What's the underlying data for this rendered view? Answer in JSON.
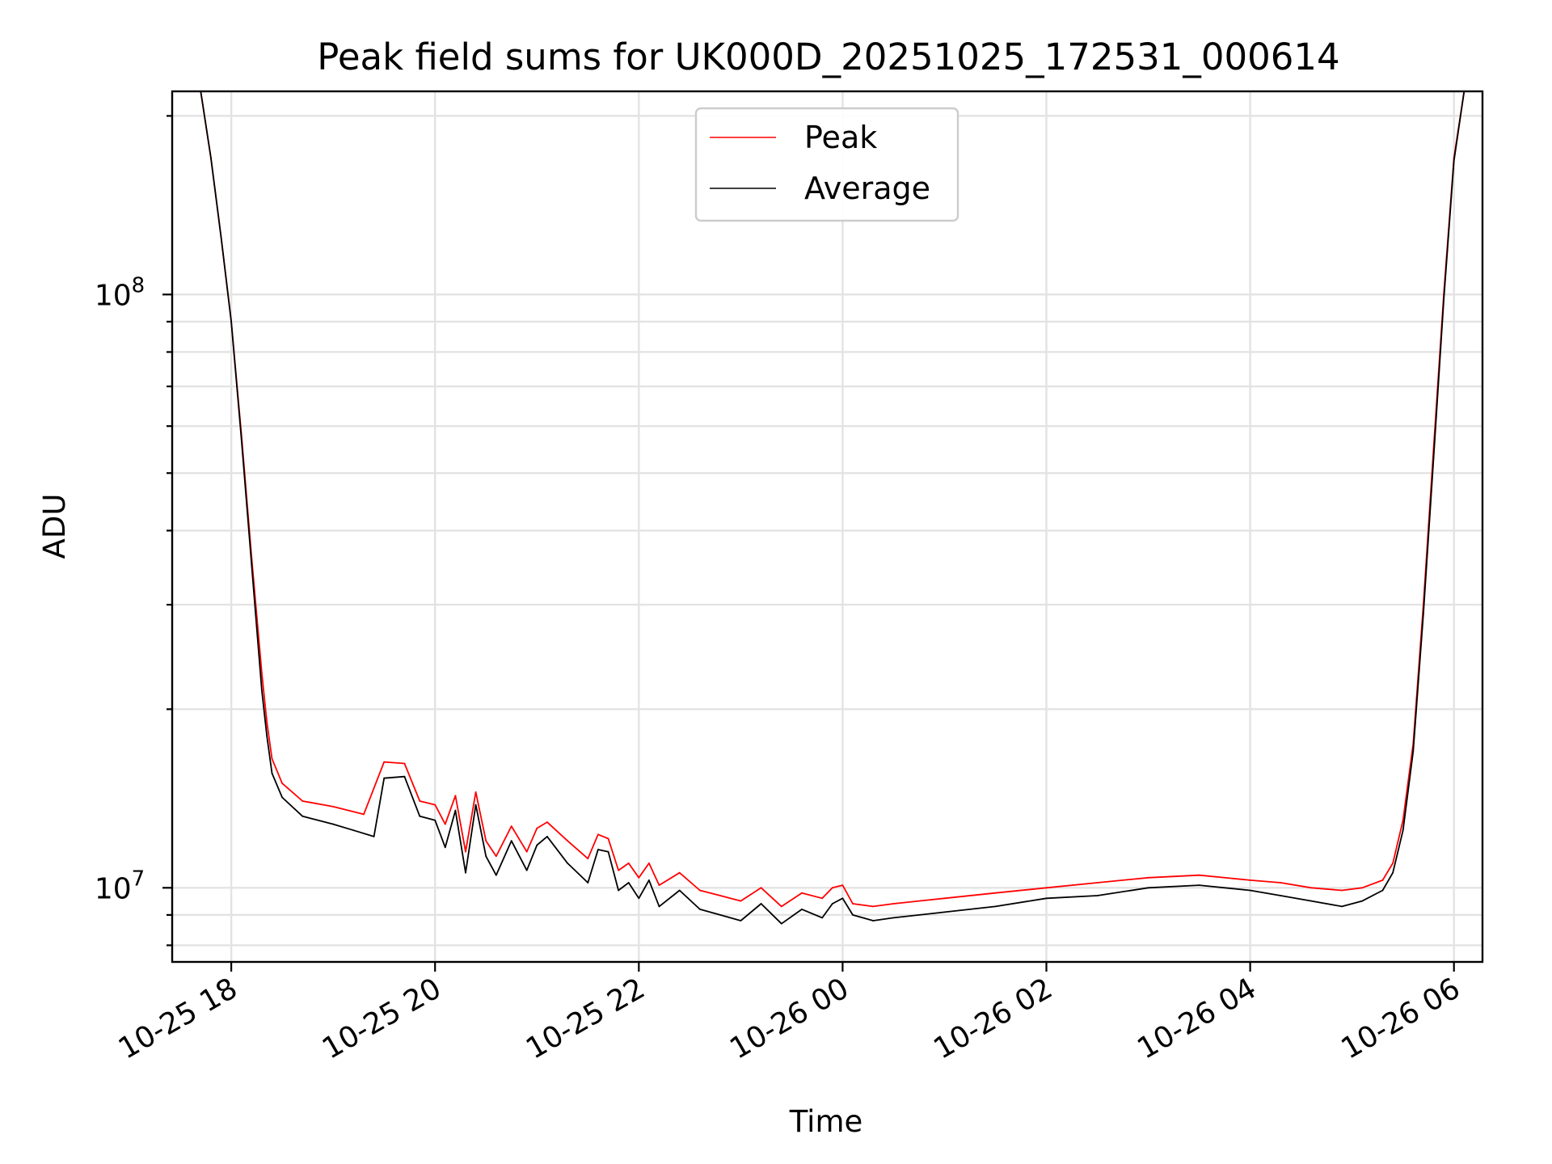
{
  "chart_data": {
    "type": "line",
    "title": "Peak field sums for UK000D_20251025_172531_000614",
    "xlabel": "Time",
    "ylabel": "ADU",
    "yscale": "log",
    "grid": true,
    "legend_position": "top-center",
    "x_unit": "hours since 10-25 18:00",
    "xlim": [
      -0.58,
      12.28
    ],
    "ylim": [
      7500000,
      220000000
    ],
    "x_ticks": [
      {
        "value": 0,
        "label": "10-25 18"
      },
      {
        "value": 2,
        "label": "10-25 20"
      },
      {
        "value": 4,
        "label": "10-25 22"
      },
      {
        "value": 6,
        "label": "10-26 00"
      },
      {
        "value": 8,
        "label": "10-26 02"
      },
      {
        "value": 10,
        "label": "10-26 04"
      },
      {
        "value": 12,
        "label": "10-26 06"
      }
    ],
    "y_ticks": [
      {
        "value": 10000000,
        "base": "10",
        "exp": "7"
      },
      {
        "value": 100000000,
        "base": "10",
        "exp": "8"
      }
    ],
    "series": [
      {
        "name": "Peak",
        "color": "#ff0000",
        "x": [
          -0.3,
          -0.2,
          -0.1,
          0.0,
          0.1,
          0.2,
          0.3,
          0.35,
          0.4,
          0.5,
          0.7,
          1.0,
          1.3,
          1.5,
          1.7,
          1.85,
          2.0,
          2.1,
          2.2,
          2.3,
          2.4,
          2.5,
          2.6,
          2.75,
          2.9,
          3.0,
          3.1,
          3.3,
          3.5,
          3.6,
          3.7,
          3.8,
          3.9,
          4.0,
          4.1,
          4.2,
          4.4,
          4.6,
          4.8,
          5.0,
          5.2,
          5.4,
          5.6,
          5.8,
          5.9,
          6.0,
          6.1,
          6.3,
          6.5,
          7.0,
          7.5,
          8.0,
          8.5,
          9.0,
          9.5,
          10.0,
          10.3,
          10.6,
          10.9,
          11.1,
          11.3,
          11.4,
          11.5,
          11.6,
          11.7,
          11.8,
          11.9,
          12.0,
          12.1
        ],
        "values": [
          220000000,
          170000000,
          125000000,
          90000000,
          58000000,
          36000000,
          23000000,
          19000000,
          16500000,
          15000000,
          14000000,
          13700000,
          13300000,
          16300000,
          16200000,
          14000000,
          13800000,
          12800000,
          14300000,
          11500000,
          14500000,
          12000000,
          11300000,
          12700000,
          11500000,
          12600000,
          12900000,
          12000000,
          11200000,
          12300000,
          12100000,
          10700000,
          11000000,
          10400000,
          11000000,
          10100000,
          10600000,
          9900000,
          9700000,
          9500000,
          10000000,
          9300000,
          9800000,
          9600000,
          10000000,
          10100000,
          9400000,
          9300000,
          9400000,
          9600000,
          9800000,
          10000000,
          10200000,
          10400000,
          10500000,
          10300000,
          10200000,
          10000000,
          9900000,
          10000000,
          10300000,
          11000000,
          13000000,
          17500000,
          30000000,
          55000000,
          100000000,
          170000000,
          220000000
        ]
      },
      {
        "name": "Average",
        "color": "#000000",
        "x": [
          -0.3,
          -0.2,
          -0.1,
          0.0,
          0.1,
          0.2,
          0.3,
          0.35,
          0.4,
          0.5,
          0.7,
          1.0,
          1.2,
          1.4,
          1.5,
          1.7,
          1.85,
          2.0,
          2.1,
          2.2,
          2.3,
          2.4,
          2.5,
          2.6,
          2.75,
          2.9,
          3.0,
          3.1,
          3.3,
          3.5,
          3.6,
          3.7,
          3.8,
          3.9,
          4.0,
          4.1,
          4.2,
          4.4,
          4.6,
          4.8,
          5.0,
          5.2,
          5.4,
          5.6,
          5.8,
          5.9,
          6.0,
          6.1,
          6.3,
          6.5,
          7.0,
          7.5,
          8.0,
          8.5,
          9.0,
          9.5,
          10.0,
          10.3,
          10.6,
          10.9,
          11.1,
          11.3,
          11.4,
          11.5,
          11.6,
          11.7,
          11.8,
          11.9,
          12.0,
          12.1
        ],
        "values": [
          220000000,
          170000000,
          125000000,
          90000000,
          57000000,
          35000000,
          21500000,
          18000000,
          15600000,
          14200000,
          13200000,
          12800000,
          12500000,
          12200000,
          15300000,
          15400000,
          13200000,
          13000000,
          11700000,
          13500000,
          10600000,
          13800000,
          11300000,
          10500000,
          12000000,
          10700000,
          11800000,
          12200000,
          11000000,
          10200000,
          11600000,
          11500000,
          9900000,
          10200000,
          9600000,
          10300000,
          9300000,
          9900000,
          9200000,
          9000000,
          8800000,
          9400000,
          8700000,
          9200000,
          8900000,
          9400000,
          9600000,
          9000000,
          8800000,
          8900000,
          9100000,
          9300000,
          9600000,
          9700000,
          10000000,
          10100000,
          9900000,
          9700000,
          9500000,
          9300000,
          9500000,
          9900000,
          10600000,
          12500000,
          17000000,
          29000000,
          53000000,
          98000000,
          168000000,
          220000000
        ]
      }
    ]
  }
}
